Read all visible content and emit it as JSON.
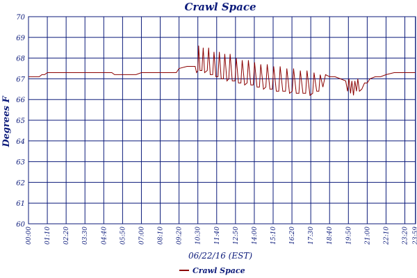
{
  "chart_data": {
    "type": "line",
    "title": "Crawl Space",
    "ylabel": "Degrees F",
    "xlabel": "06/22/16 (EST)",
    "ylim": [
      60,
      70
    ],
    "yticks": [
      "60",
      "61",
      "62",
      "63",
      "64",
      "65",
      "66",
      "67",
      "68",
      "69",
      "70"
    ],
    "xticks": [
      "00:00",
      "01:10",
      "02:20",
      "03:30",
      "04:40",
      "05:50",
      "07:00",
      "08:10",
      "09:20",
      "10:30",
      "11:40",
      "12:50",
      "14:00",
      "15:10",
      "16:20",
      "17:30",
      "18:40",
      "19:50",
      "21:00",
      "22:10",
      "23:20",
      "23:59"
    ],
    "grid": true,
    "legend_position": "bottom",
    "series": [
      {
        "name": "Crawl Space",
        "color": "#8b0000",
        "points": [
          [
            "00:00",
            67.1
          ],
          [
            "00:40",
            67.1
          ],
          [
            "00:50",
            67.2
          ],
          [
            "01:00",
            67.2
          ],
          [
            "01:10",
            67.3
          ],
          [
            "02:20",
            67.3
          ],
          [
            "03:30",
            67.3
          ],
          [
            "04:40",
            67.3
          ],
          [
            "05:10",
            67.3
          ],
          [
            "05:20",
            67.2
          ],
          [
            "05:50",
            67.2
          ],
          [
            "06:40",
            67.2
          ],
          [
            "07:00",
            67.3
          ],
          [
            "08:10",
            67.3
          ],
          [
            "08:30",
            67.3
          ],
          [
            "08:40",
            67.3
          ],
          [
            "09:10",
            67.3
          ],
          [
            "09:20",
            67.5
          ],
          [
            "09:50",
            67.6
          ],
          [
            "10:20",
            67.6
          ],
          [
            "10:25",
            67.3
          ],
          [
            "10:30",
            67.4
          ],
          [
            "10:33",
            68.6
          ],
          [
            "10:38",
            67.4
          ],
          [
            "10:45",
            67.4
          ],
          [
            "10:50",
            68.5
          ],
          [
            "10:55",
            67.3
          ],
          [
            "11:05",
            67.4
          ],
          [
            "11:10",
            68.5
          ],
          [
            "11:16",
            67.2
          ],
          [
            "11:25",
            67.2
          ],
          [
            "11:30",
            68.3
          ],
          [
            "11:37",
            67.1
          ],
          [
            "11:45",
            67.1
          ],
          [
            "11:50",
            68.3
          ],
          [
            "11:57",
            67.0
          ],
          [
            "12:05",
            67.0
          ],
          [
            "12:10",
            68.2
          ],
          [
            "12:18",
            66.9
          ],
          [
            "12:25",
            67.0
          ],
          [
            "12:30",
            68.2
          ],
          [
            "12:38",
            66.9
          ],
          [
            "12:48",
            66.9
          ],
          [
            "12:53",
            68.0
          ],
          [
            "13:01",
            66.8
          ],
          [
            "13:10",
            66.8
          ],
          [
            "13:15",
            67.9
          ],
          [
            "13:24",
            66.7
          ],
          [
            "13:33",
            66.8
          ],
          [
            "13:38",
            67.9
          ],
          [
            "13:47",
            66.7
          ],
          [
            "13:56",
            66.7
          ],
          [
            "14:01",
            67.8
          ],
          [
            "14:10",
            66.6
          ],
          [
            "14:19",
            66.6
          ],
          [
            "14:24",
            67.7
          ],
          [
            "14:34",
            66.5
          ],
          [
            "14:43",
            66.6
          ],
          [
            "14:48",
            67.7
          ],
          [
            "14:58",
            66.5
          ],
          [
            "15:07",
            66.5
          ],
          [
            "15:12",
            67.6
          ],
          [
            "15:22",
            66.4
          ],
          [
            "15:31",
            66.4
          ],
          [
            "15:36",
            67.6
          ],
          [
            "15:46",
            66.4
          ],
          [
            "15:56",
            66.4
          ],
          [
            "16:01",
            67.5
          ],
          [
            "16:11",
            66.3
          ],
          [
            "16:21",
            66.4
          ],
          [
            "16:26",
            67.5
          ],
          [
            "16:36",
            66.3
          ],
          [
            "16:46",
            66.3
          ],
          [
            "16:51",
            67.4
          ],
          [
            "17:01",
            66.3
          ],
          [
            "17:11",
            66.3
          ],
          [
            "17:16",
            67.4
          ],
          [
            "17:27",
            66.2
          ],
          [
            "17:37",
            66.3
          ],
          [
            "17:42",
            67.3
          ],
          [
            "17:52",
            66.4
          ],
          [
            "18:00",
            66.4
          ],
          [
            "18:05",
            67.2
          ],
          [
            "18:15",
            66.6
          ],
          [
            "18:25",
            67.2
          ],
          [
            "18:40",
            67.1
          ],
          [
            "19:00",
            67.1
          ],
          [
            "19:20",
            67.0
          ],
          [
            "19:40",
            66.9
          ],
          [
            "19:47",
            66.4
          ],
          [
            "19:52",
            67.0
          ],
          [
            "19:58",
            66.3
          ],
          [
            "20:03",
            66.9
          ],
          [
            "20:09",
            66.2
          ],
          [
            "20:14",
            66.9
          ],
          [
            "20:20",
            66.4
          ],
          [
            "20:25",
            67.0
          ],
          [
            "20:31",
            66.4
          ],
          [
            "20:40",
            66.5
          ],
          [
            "20:50",
            66.8
          ],
          [
            "21:00",
            66.8
          ],
          [
            "21:10",
            67.0
          ],
          [
            "21:30",
            67.1
          ],
          [
            "21:50",
            67.1
          ],
          [
            "22:10",
            67.2
          ],
          [
            "22:40",
            67.3
          ],
          [
            "23:20",
            67.3
          ],
          [
            "23:59",
            67.3
          ]
        ]
      }
    ]
  }
}
